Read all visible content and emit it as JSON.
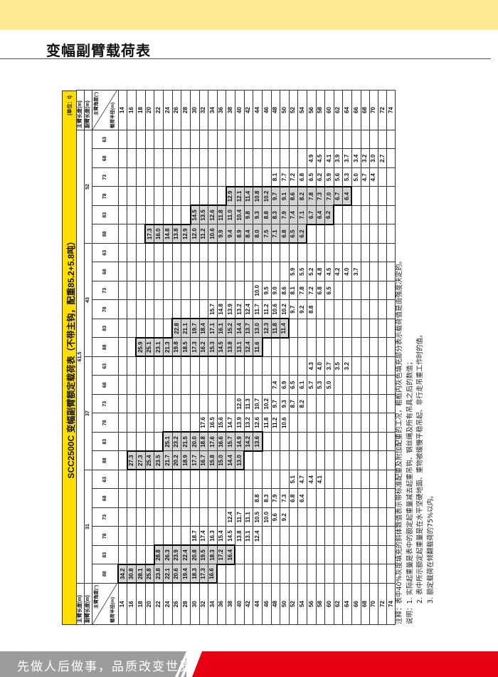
{
  "page": {
    "title": "变幅副臂载荷表",
    "slogan": "先做人后做事，品质改变世界",
    "colors": {
      "top_band": "#fde992",
      "table_title_bg": "#ffde00",
      "strength_fill": "#d4d4d4",
      "footer_red": "#e60012",
      "footer_gray": "#9c9c9c"
    }
  },
  "table": {
    "title": "SCC2500C 变幅副臂额定载荷表（不带主钩，配重85.2+5.8吨）",
    "unit": "(单位：t)",
    "main_boom_label": "主臂长度(m)",
    "jib_label": "副臂长度(m)",
    "angle_label": "主臂角度(°)",
    "radius_label": "载荷半径(m)",
    "main_boom_length": "61.5",
    "groups": [
      {
        "jib": "31",
        "angles": [
          "88",
          "83",
          "78",
          "73",
          "68",
          "63"
        ],
        "boxed_angles": [
          "88",
          "83"
        ]
      },
      {
        "jib": "37",
        "angles": [
          "88",
          "83",
          "78",
          "73",
          "68",
          "63"
        ],
        "boxed_angles": [
          "88",
          "83"
        ]
      },
      {
        "jib": "43",
        "angles": [
          "88",
          "83",
          "78",
          "73",
          "68",
          "63"
        ],
        "boxed_angles": [
          "88",
          "83"
        ]
      },
      {
        "jib": "52",
        "angles": [
          "88",
          "83",
          "78",
          "73",
          "68",
          "63"
        ],
        "boxed_angles": [
          "88",
          "83",
          "78"
        ]
      }
    ],
    "rows": [
      {
        "radius": "14",
        "values": [
          "34.2",
          "",
          "",
          "",
          "",
          "",
          "",
          "",
          "",
          "",
          "",
          "",
          "",
          "",
          "",
          "",
          "",
          "",
          "",
          "",
          "",
          "",
          "",
          ""
        ]
      },
      {
        "radius": "16",
        "values": [
          "30.8",
          "",
          "",
          "",
          "",
          "",
          "27.3",
          "",
          "",
          "",
          "",
          "",
          "",
          "",
          "",
          "",
          "",
          "",
          "",
          "",
          "",
          "",
          "",
          ""
        ]
      },
      {
        "radius": "18",
        "values": [
          "28.1",
          "",
          "",
          "",
          "",
          "",
          "27.3",
          "",
          "",
          "",
          "",
          "",
          "25.9",
          "",
          "",
          "",
          "",
          "",
          "",
          "",
          "",
          "",
          "",
          ""
        ]
      },
      {
        "radius": "20",
        "values": [
          "25.8",
          "",
          "",
          "",
          "",
          "",
          "25.4",
          "",
          "",
          "",
          "",
          "",
          "25.1",
          "",
          "",
          "",
          "",
          "",
          "17.3",
          "",
          "",
          "",
          "",
          ""
        ]
      },
      {
        "radius": "22",
        "values": [
          "23.8",
          "28.8",
          "",
          "",
          "",
          "",
          "23.5",
          "",
          "",
          "",
          "",
          "",
          "23.1",
          "",
          "",
          "",
          "",
          "",
          "16.0",
          "",
          "",
          "",
          "",
          ""
        ]
      },
      {
        "radius": "24",
        "values": [
          "22.1",
          "26.3",
          "",
          "",
          "",
          "",
          "21.7",
          "25.1",
          "",
          "",
          "",
          "",
          "21.3",
          "",
          "",
          "",
          "",
          "",
          "14.8",
          "",
          "",
          "",
          "",
          ""
        ]
      },
      {
        "radius": "26",
        "values": [
          "20.6",
          "23.9",
          "",
          "",
          "",
          "",
          "20.2",
          "23.2",
          "",
          "",
          "",
          "",
          "19.8",
          "22.8",
          "",
          "",
          "",
          "",
          "13.8",
          "",
          "",
          "",
          "",
          ""
        ]
      },
      {
        "radius": "28",
        "values": [
          "19.4",
          "22.4",
          "",
          "",
          "",
          "",
          "18.9",
          "21.5",
          "",
          "",
          "",
          "",
          "18.5",
          "21.1",
          "",
          "",
          "",
          "",
          "12.9",
          "",
          "",
          "",
          "",
          ""
        ]
      },
      {
        "radius": "30",
        "values": [
          "18.3",
          "20.8",
          "18.7",
          "",
          "",
          "",
          "17.7",
          "20.0",
          "",
          "",
          "",
          "",
          "17.3",
          "19.7",
          "",
          "",
          "",
          "",
          "12.0",
          "14.5",
          "",
          "",
          "",
          ""
        ]
      },
      {
        "radius": "32",
        "values": [
          "17.3",
          "19.5",
          "17.4",
          "",
          "",
          "",
          "16.7",
          "18.8",
          "17.6",
          "",
          "",
          "",
          "16.2",
          "18.4",
          "",
          "",
          "",
          "",
          "11.2",
          "13.5",
          "",
          "",
          "",
          ""
        ]
      },
      {
        "radius": "34",
        "values": [
          "16.6",
          "18.3",
          "16.3",
          "",
          "",
          "",
          "15.8",
          "17.6",
          "16.5",
          "",
          "",
          "",
          "15.3",
          "17.1",
          "15.7",
          "",
          "",
          "",
          "10.6",
          "12.6",
          "",
          "",
          "",
          ""
        ]
      },
      {
        "radius": "36",
        "values": [
          "",
          "17.2",
          "15.4",
          "",
          "",
          "",
          "15.0",
          "16.6",
          "15.6",
          "",
          "",
          "",
          "14.5",
          "16.1",
          "14.8",
          "",
          "",
          "",
          "9.9",
          "11.8",
          "",
          "",
          "",
          ""
        ]
      },
      {
        "radius": "38",
        "values": [
          "",
          "16.4",
          "14.5",
          "12.4",
          "",
          "",
          "14.4",
          "15.7",
          "14.7",
          "",
          "",
          "",
          "13.8",
          "15.2",
          "13.9",
          "",
          "",
          "",
          "9.4",
          "11.0",
          "12.9",
          "",
          "",
          ""
        ]
      },
      {
        "radius": "40",
        "values": [
          "",
          "",
          "13.8",
          "11.7",
          "",
          "",
          "13.0",
          "14.9",
          "13.9",
          "12.0",
          "",
          "",
          "13.1",
          "14.4",
          "13.2",
          "",
          "",
          "",
          "8.9",
          "10.4",
          "12.1",
          "",
          "",
          ""
        ]
      },
      {
        "radius": "42",
        "values": [
          "",
          "",
          "13.1",
          "11.1",
          "",
          "",
          "",
          "14.2",
          "13.2",
          "11.3",
          "",
          "",
          "12.4",
          "13.7",
          "12.4",
          "",
          "",
          "",
          "8.4",
          "9.8",
          "11.4",
          "",
          "",
          ""
        ]
      },
      {
        "radius": "44",
        "values": [
          "",
          "",
          "12.4",
          "10.5",
          "8.8",
          "",
          "",
          "13.6",
          "12.6",
          "10.7",
          "",
          "",
          "11.6",
          "13.0",
          "11.7",
          "10.0",
          "",
          "",
          "8.0",
          "9.3",
          "10.8",
          "",
          "",
          ""
        ]
      },
      {
        "radius": "46",
        "values": [
          "",
          "",
          "",
          "10.0",
          "8.3",
          "",
          "",
          "",
          "11.8",
          "10.2",
          "",
          "",
          "",
          "12.3",
          "11.2",
          "9.5",
          "",
          "",
          "7.5",
          "8.8",
          "10.2",
          "",
          "",
          ""
        ]
      },
      {
        "radius": "48",
        "values": [
          "",
          "",
          "",
          "9.6",
          "7.9",
          "",
          "",
          "",
          "11.2",
          "9.7",
          "7.4",
          "",
          "",
          "11.8",
          "10.6",
          "9.0",
          "",
          "",
          "7.1",
          "8.3",
          "9.7",
          "8.1",
          "",
          ""
        ]
      },
      {
        "radius": "50",
        "values": [
          "",
          "",
          "",
          "9.2",
          "7.3",
          "",
          "",
          "",
          "10.6",
          "9.3",
          "6.9",
          "",
          "",
          "11.4",
          "10.2",
          "8.6",
          "",
          "",
          "6.8",
          "7.9",
          "9.1",
          "7.7",
          "",
          ""
        ]
      },
      {
        "radius": "52",
        "values": [
          "",
          "",
          "",
          "",
          "6.8",
          "5.1",
          "",
          "",
          "",
          "8.7",
          "6.5",
          "",
          "",
          "",
          "9.7",
          "8.1",
          "5.9",
          "",
          "6.5",
          "7.4",
          "8.6",
          "7.2",
          "",
          ""
        ]
      },
      {
        "radius": "54",
        "values": [
          "",
          "",
          "",
          "",
          "6.4",
          "4.7",
          "",
          "",
          "",
          "8.2",
          "6.1",
          "",
          "",
          "",
          "9.2",
          "7.8",
          "5.5",
          "",
          "6.2",
          "7.1",
          "8.2",
          "6.8",
          "",
          ""
        ]
      },
      {
        "radius": "56",
        "values": [
          "",
          "",
          "",
          "",
          "",
          "4.4",
          "",
          "",
          "",
          "",
          "5.7",
          "4.3",
          "",
          "",
          "8.8",
          "7.2",
          "5.2",
          "",
          "",
          "6.7",
          "7.8",
          "6.5",
          "4.9",
          ""
        ]
      },
      {
        "radius": "58",
        "values": [
          "",
          "",
          "",
          "",
          "",
          "4.1",
          "",
          "",
          "",
          "",
          "5.3",
          "4.0",
          "",
          "",
          "",
          "6.8",
          "4.8",
          "",
          "",
          "6.4",
          "7.3",
          "6.2",
          "4.5",
          ""
        ]
      },
      {
        "radius": "60",
        "values": [
          "",
          "",
          "",
          "",
          "",
          "",
          "",
          "",
          "",
          "",
          "5.0",
          "3.7",
          "",
          "",
          "",
          "6.5",
          "4.5",
          "",
          "",
          "6.2",
          "7.0",
          "5.9",
          "4.1",
          ""
        ]
      },
      {
        "radius": "62",
        "values": [
          "",
          "",
          "",
          "",
          "",
          "",
          "",
          "",
          "",
          "",
          "",
          "3.5",
          "",
          "",
          "",
          "",
          "4.2",
          "",
          "",
          "",
          "6.7",
          "5.6",
          "3.9",
          ""
        ]
      },
      {
        "radius": "64",
        "values": [
          "",
          "",
          "",
          "",
          "",
          "",
          "",
          "",
          "",
          "",
          "",
          "3.2",
          "",
          "",
          "",
          "",
          "4.0",
          "",
          "",
          "",
          "6.4",
          "5.3",
          "3.7",
          ""
        ]
      },
      {
        "radius": "66",
        "values": [
          "",
          "",
          "",
          "",
          "",
          "",
          "",
          "",
          "",
          "",
          "",
          "",
          "",
          "",
          "",
          "",
          "3.7",
          "",
          "",
          "",
          "",
          "5.0",
          "3.4",
          ""
        ]
      },
      {
        "radius": "68",
        "values": [
          "",
          "",
          "",
          "",
          "",
          "",
          "",
          "",
          "",
          "",
          "",
          "",
          "",
          "",
          "",
          "",
          "",
          "",
          "",
          "",
          "",
          "4.7",
          "3.2",
          ""
        ]
      },
      {
        "radius": "70",
        "values": [
          "",
          "",
          "",
          "",
          "",
          "",
          "",
          "",
          "",
          "",
          "",
          "",
          "",
          "",
          "",
          "",
          "",
          "",
          "",
          "",
          "",
          "4.4",
          "3.0",
          ""
        ]
      },
      {
        "radius": "72",
        "values": [
          "",
          "",
          "",
          "",
          "",
          "",
          "",
          "",
          "",
          "",
          "",
          "",
          "",
          "",
          "",
          "",
          "",
          "",
          "",
          "",
          "",
          "",
          "2.7",
          ""
        ]
      },
      {
        "radius": "74",
        "values": [
          "",
          "",
          "",
          "",
          "",
          "",
          "",
          "",
          "",
          "",
          "",
          "",
          "",
          "",
          "",
          "",
          "",
          "",
          "",
          "",
          "",
          "",
          "",
          ""
        ]
      }
    ]
  },
  "notes": {
    "remark": "注释：表中40%灰度填充的斜体数值表示带标准配重及附加配重的工况，粗框内灰色填充部分表示载荷值是由强度决定的。",
    "note1": "说明：1. 实际起重量是表中的额定起重量减去起重吊钩、钢丝绳及所有吊具之后的数值；",
    "note2": "2. 表中所示额定起重量是在水平坚硬地面、重物被缓慢平稳吊起、非行走吊重工作时的值。",
    "note3": "3. 额定载荷在倾翻载荷的75%以内。"
  }
}
